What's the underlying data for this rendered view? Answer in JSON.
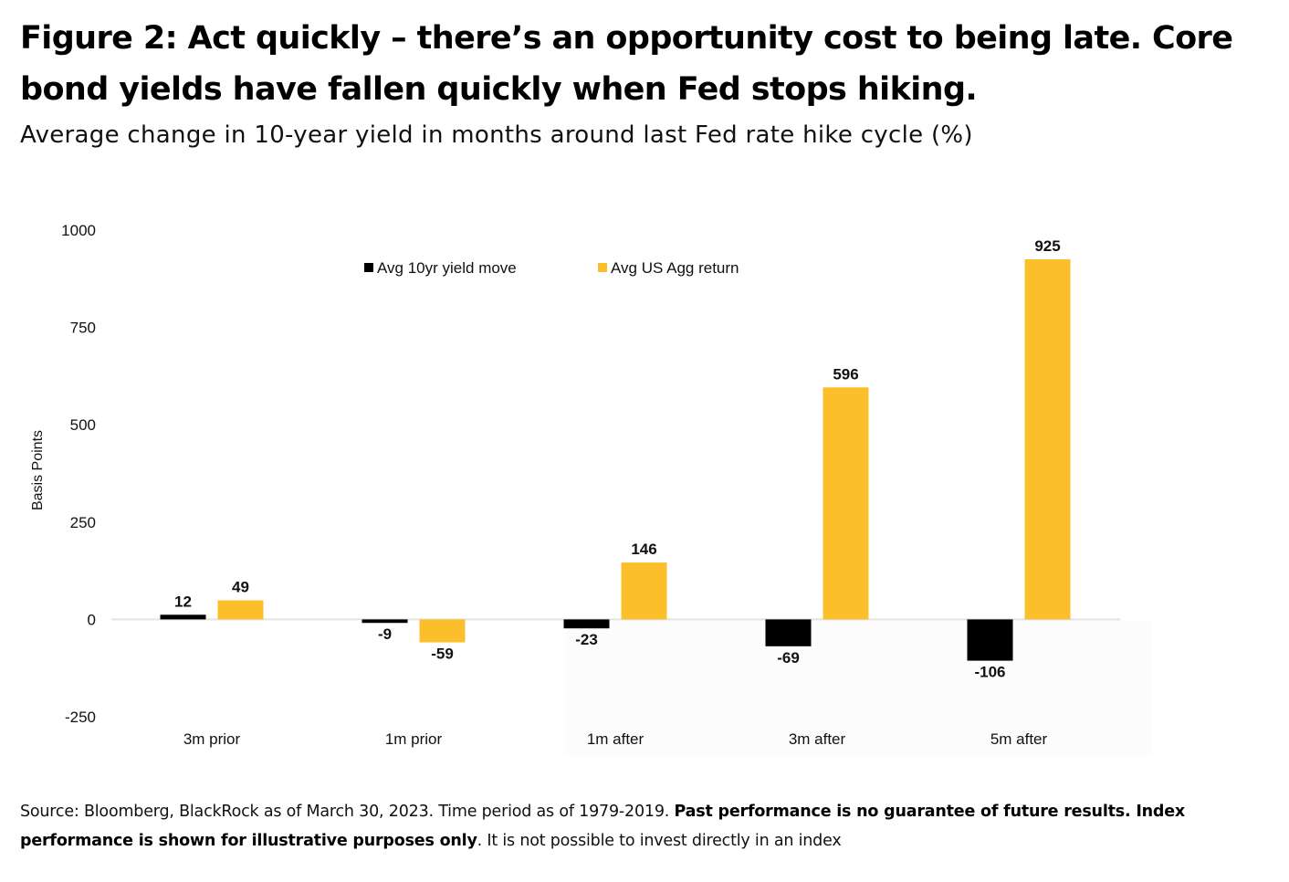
{
  "header": {
    "title": "Figure 2: Act quickly – there’s an opportunity cost to being late. Core bond yields have fallen quickly when Fed stops hiking.",
    "subtitle": "Average change in 10-year yield in months around last Fed rate hike cycle (%)"
  },
  "footer": {
    "source_plain_1": "Source: Bloomberg, BlackRock as of March 30, 2023. Time period as of 1979-2019. ",
    "source_bold": "Past performance is no guarantee of future results. Index performance is shown for illustrative purposes only",
    "source_plain_2": ". It is not possible to invest directly in an index"
  },
  "chart_data": {
    "type": "bar",
    "title": "",
    "xlabel": "",
    "ylabel": "Basis Points",
    "ylim": [
      -250,
      1000
    ],
    "yticks": [
      1000,
      750,
      500,
      250,
      0,
      -250
    ],
    "grid": false,
    "legend_position": "top-center",
    "categories": [
      "3m prior",
      "1m prior",
      "1m after",
      "3m after",
      "5m after"
    ],
    "series": [
      {
        "name": "Avg 10yr yield move",
        "color": "#000000",
        "values": [
          12,
          -9,
          -23,
          -69,
          -106
        ]
      },
      {
        "name": "Avg US Agg return",
        "color": "#FBBF2C",
        "values": [
          49,
          -59,
          146,
          596,
          925
        ]
      }
    ],
    "colors": {
      "zero_line": "#e3e3e3",
      "plot_shade": "#fcfcfc",
      "text": "#111111"
    }
  }
}
